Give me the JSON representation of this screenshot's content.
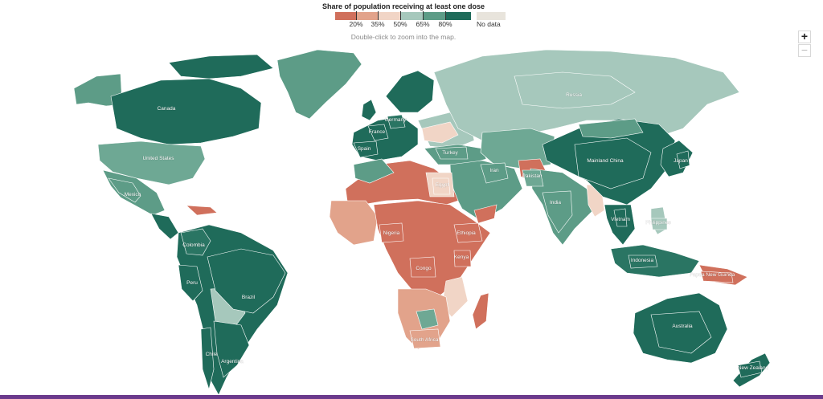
{
  "legend": {
    "title": "Share of population receiving at least one dose",
    "bins": [
      {
        "color": "#d0705c"
      },
      {
        "color": "#e2a38b"
      },
      {
        "color": "#f1d5c6"
      },
      {
        "color": "#a6c8bc"
      },
      {
        "color": "#5d9c87"
      },
      {
        "color": "#1f6b5a"
      }
    ],
    "ticks": [
      "20%",
      "35%",
      "50%",
      "65%",
      "80%"
    ],
    "no_data": {
      "label": "No data",
      "color": "#e8e4dc"
    }
  },
  "instruction": "Double-click to zoom into the map.",
  "zoom": {
    "in_label": "+",
    "out_label": "−"
  },
  "regions": [
    {
      "label": "Canada",
      "color": "#1f6b5a"
    },
    {
      "label": "United States",
      "color": "#6ea894"
    },
    {
      "label": "Mexico",
      "color": "#5d9c87"
    },
    {
      "label": "Colombia",
      "color": "#2a7563"
    },
    {
      "label": "Peru",
      "color": "#1f6b5a"
    },
    {
      "label": "Brazil",
      "color": "#1f6b5a"
    },
    {
      "label": "Chile",
      "color": "#1f6b5a"
    },
    {
      "label": "Argentina",
      "color": "#1f6b5a"
    },
    {
      "label": "Spain",
      "color": "#1f6b5a"
    },
    {
      "label": "France",
      "color": "#1f6b5a"
    },
    {
      "label": "Germany",
      "color": "#2a7563"
    },
    {
      "label": "Russia",
      "color": "#a6c8bc"
    },
    {
      "label": "Turkey",
      "color": "#5d9c87"
    },
    {
      "label": "Iran",
      "color": "#5d9c87"
    },
    {
      "label": "Pakistan",
      "color": "#6ea894"
    },
    {
      "label": "India",
      "color": "#5d9c87"
    },
    {
      "label": "Mainland China",
      "color": "#1f6b5a"
    },
    {
      "label": "Japan",
      "color": "#1f6b5a"
    },
    {
      "label": "Vietnam",
      "color": "#1f6b5a"
    },
    {
      "label": "Philippines",
      "color": "#a6c8bc"
    },
    {
      "label": "Indonesia",
      "color": "#2a7563"
    },
    {
      "label": "Papua New Guinea",
      "color": "#d0705c"
    },
    {
      "label": "Australia",
      "color": "#1f6b5a"
    },
    {
      "label": "New Zealand",
      "color": "#1f6b5a"
    },
    {
      "label": "Egypt",
      "color": "#f1d5c6"
    },
    {
      "label": "Nigeria",
      "color": "#d0705c"
    },
    {
      "label": "Ethiopia",
      "color": "#d0705c"
    },
    {
      "label": "Kenya",
      "color": "#d0705c"
    },
    {
      "label": "Congo",
      "color": "#d0705c"
    },
    {
      "label": "South Africa",
      "color": "#e2a38b"
    }
  ]
}
